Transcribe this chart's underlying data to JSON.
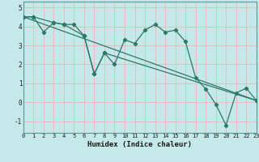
{
  "xlabel": "Humidex (Indice chaleur)",
  "background_color": "#c5e8e8",
  "grid_color": "#e8b8b8",
  "line_color": "#2a7a6a",
  "marker_color": "#2a7a6a",
  "line1_x": [
    0,
    1,
    2,
    3,
    4,
    5,
    6,
    7,
    8,
    9,
    10,
    11,
    12,
    13,
    14,
    15,
    16,
    17,
    18,
    19,
    20,
    21,
    22,
    23
  ],
  "line1_y": [
    4.5,
    4.5,
    3.7,
    4.2,
    4.1,
    4.1,
    3.5,
    1.5,
    2.6,
    2.0,
    3.3,
    3.1,
    3.8,
    4.1,
    3.7,
    3.8,
    3.2,
    1.3,
    0.7,
    -0.1,
    -1.2,
    0.5,
    0.75,
    0.1
  ],
  "line2_x": [
    0,
    1,
    3,
    4,
    6,
    7,
    8,
    23
  ],
  "line2_y": [
    4.5,
    4.5,
    4.2,
    4.1,
    3.5,
    1.5,
    2.6,
    0.1
  ],
  "line3_x": [
    0,
    23
  ],
  "line3_y": [
    4.5,
    0.1
  ],
  "xlim": [
    0,
    23
  ],
  "ylim": [
    -1.6,
    5.3
  ],
  "yticks": [
    -1,
    0,
    1,
    2,
    3,
    4,
    5
  ],
  "xticks": [
    0,
    1,
    2,
    3,
    4,
    5,
    6,
    7,
    8,
    9,
    10,
    11,
    12,
    13,
    14,
    15,
    16,
    17,
    18,
    19,
    20,
    21,
    22,
    23
  ]
}
